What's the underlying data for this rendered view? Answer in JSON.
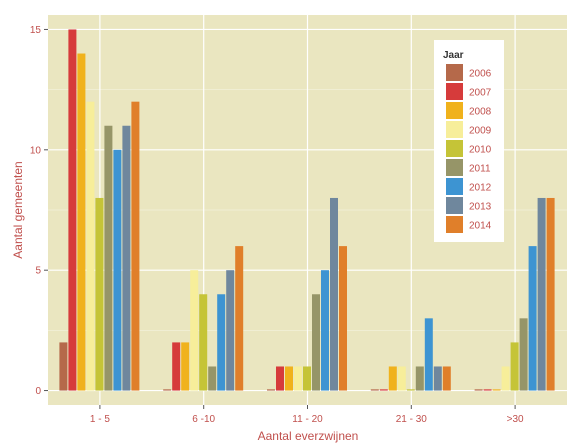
{
  "chart_data": {
    "type": "bar",
    "categories": [
      "1 - 5",
      "6 -10",
      "11 - 20",
      "21 - 30",
      ">30"
    ],
    "xlabel": "Aantal everzwijnen",
    "ylabel": "Aantal gemeenten",
    "ylim": [
      -0.6,
      15.6
    ],
    "yticks": [
      0,
      5,
      10,
      15
    ],
    "grid": true,
    "legend": {
      "title": "Jaar",
      "position": "top-right"
    },
    "colors": {
      "panel_background": "#eae6c0",
      "grid": "#ffffff",
      "tick_text": "#c0504d",
      "series": [
        "#b5694a",
        "#d63b3b",
        "#f0b21c",
        "#f7ee9a",
        "#c5c437",
        "#969568",
        "#3d94d2",
        "#6f879d",
        "#e07f2a"
      ]
    },
    "series": [
      {
        "name": "2006",
        "values": [
          2,
          0.05,
          0.05,
          0.05,
          0.05
        ]
      },
      {
        "name": "2007",
        "values": [
          15,
          2,
          1,
          0.05,
          0.05
        ]
      },
      {
        "name": "2008",
        "values": [
          14,
          2,
          1,
          1,
          0.05
        ]
      },
      {
        "name": "2009",
        "values": [
          12,
          5,
          1,
          1,
          1
        ]
      },
      {
        "name": "2010",
        "values": [
          8,
          4,
          1,
          0.05,
          2
        ]
      },
      {
        "name": "2011",
        "values": [
          11,
          1,
          4,
          1,
          3
        ]
      },
      {
        "name": "2012",
        "values": [
          10,
          4,
          5,
          3,
          6
        ]
      },
      {
        "name": "2013",
        "values": [
          11,
          5,
          8,
          1,
          8
        ]
      },
      {
        "name": "2014",
        "values": [
          12,
          6,
          6,
          1,
          8
        ]
      }
    ]
  }
}
